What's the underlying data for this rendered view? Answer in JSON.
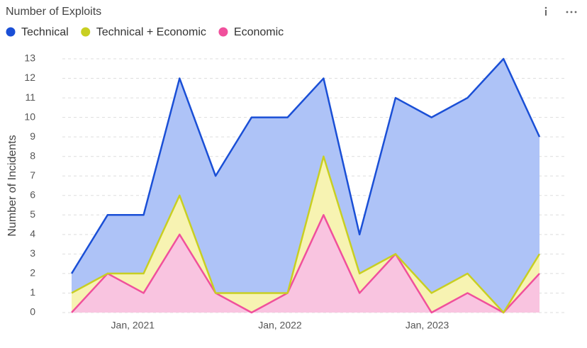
{
  "chart_data": {
    "type": "stacked_area",
    "title": "Number of Exploits",
    "ylabel": "Number of Incidents",
    "categories": [
      null,
      null,
      null,
      null,
      null,
      null,
      null,
      null,
      null,
      null,
      null,
      null,
      null,
      null
    ],
    "xlim": [
      0,
      13
    ],
    "xticks": [
      {
        "value": 1.7,
        "label": "Jan, 2021"
      },
      {
        "value": 5.79,
        "label": "Jan, 2022"
      },
      {
        "value": 9.88,
        "label": "Jan, 2023"
      }
    ],
    "ylim": [
      0,
      13
    ],
    "yticks": [
      0,
      1,
      2,
      3,
      4,
      5,
      6,
      7,
      8,
      9,
      10,
      11,
      12,
      13
    ],
    "grid": true,
    "series": [
      {
        "name": "Technical",
        "color": "#1a4fd6",
        "fill": "#aec3f7",
        "values": [
          1,
          3,
          3,
          6,
          6,
          9,
          9,
          4,
          2,
          8,
          9,
          9,
          13,
          6
        ]
      },
      {
        "name": "Technical + Economic",
        "color": "#c8cf22",
        "fill": "#f7f3b2",
        "values": [
          1,
          0,
          1,
          2,
          0,
          1,
          0,
          3,
          1,
          0,
          1,
          1,
          0,
          1
        ]
      },
      {
        "name": "Economic",
        "color": "#f0509c",
        "fill": "#f9c4e0",
        "values": [
          0,
          2,
          1,
          4,
          1,
          0,
          1,
          5,
          1,
          3,
          0,
          1,
          0,
          2
        ]
      }
    ]
  }
}
